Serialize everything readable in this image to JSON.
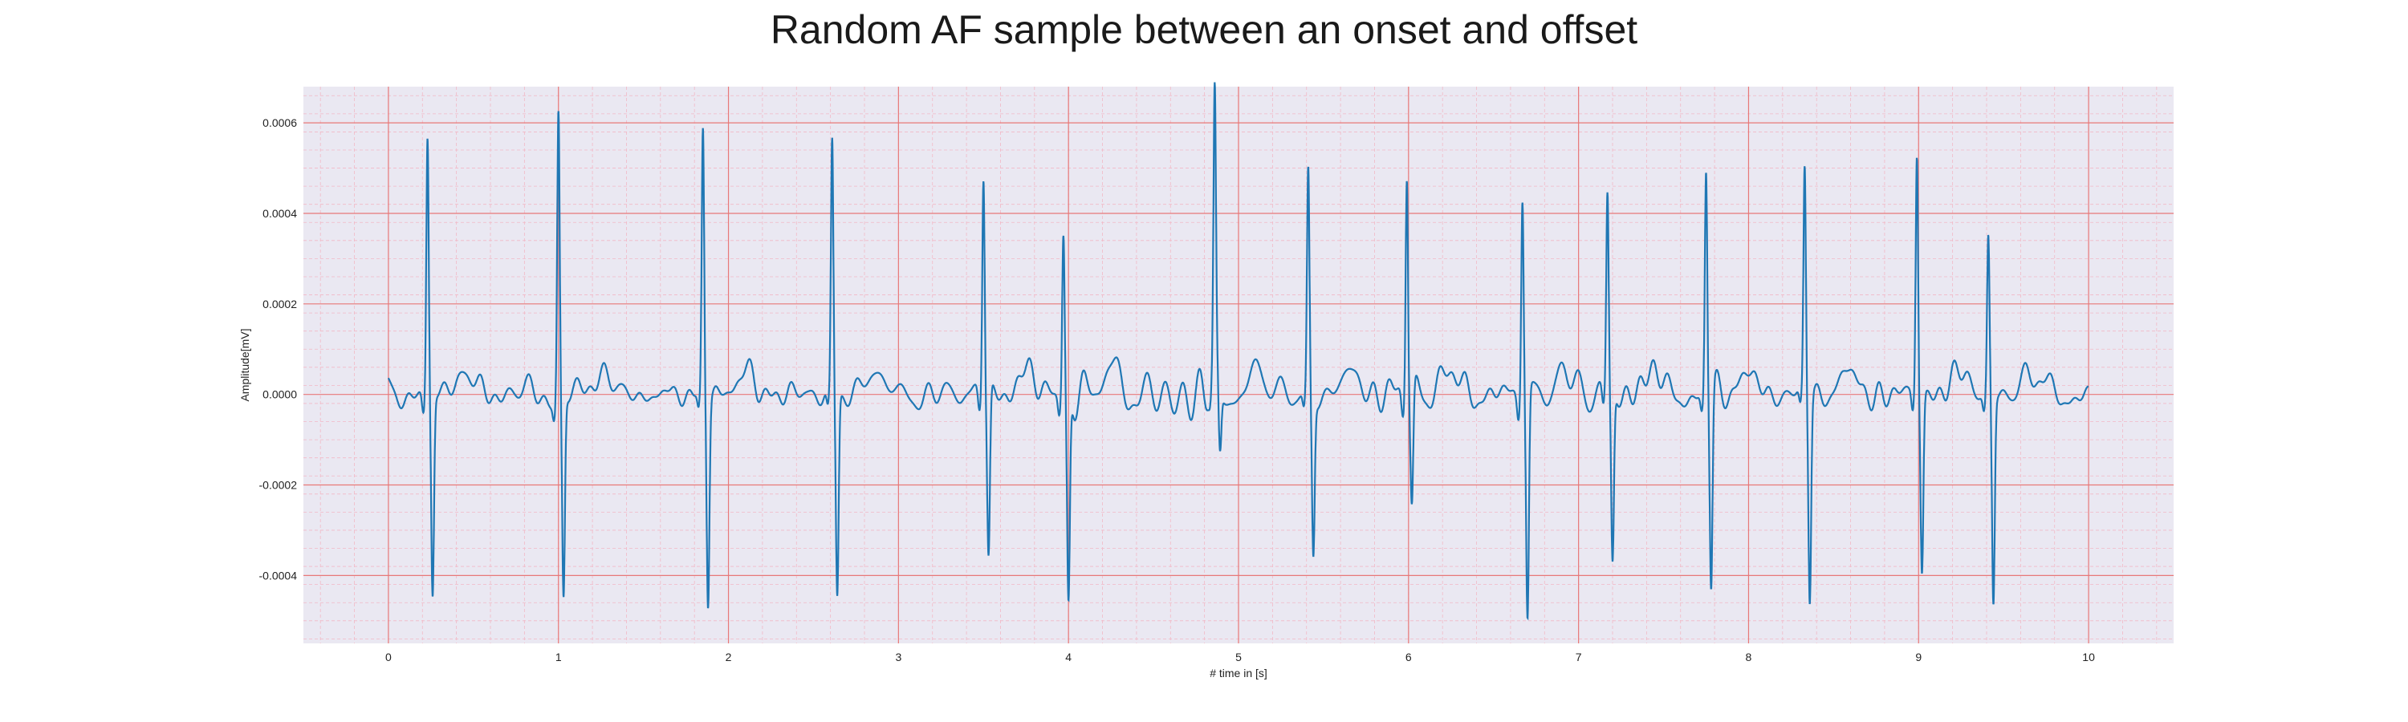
{
  "chart_data": {
    "type": "line",
    "title": "Random AF sample between an onset and offset",
    "xlabel": "# time in [s]",
    "ylabel": "Amplitude[mV]",
    "xlim": [
      -0.5,
      10.5
    ],
    "ylim": [
      -0.00055,
      0.00068
    ],
    "xticks": [
      0,
      1,
      2,
      3,
      4,
      5,
      6,
      7,
      8,
      9,
      10
    ],
    "yticks": [
      -0.0004,
      -0.0002,
      0.0,
      0.0002,
      0.0004,
      0.0006
    ],
    "ytick_labels": [
      "-0.0004",
      "-0.0002",
      "0.0000",
      "0.0002",
      "0.0004",
      "0.0006"
    ],
    "grid": true,
    "grid_color": "#e87878",
    "minor_grid_color": "#f2b8c6",
    "plot_background": "#eae8f2",
    "line_color": "#1f77b4",
    "beats": [
      {
        "t": 0.23,
        "peak": 0.00058,
        "trough": -0.00044
      },
      {
        "t": 1.0,
        "peak": 0.00062,
        "trough": -0.00045
      },
      {
        "t": 1.85,
        "peak": 0.00058,
        "trough": -0.00045
      },
      {
        "t": 2.61,
        "peak": 0.00056,
        "trough": -0.00044
      },
      {
        "t": 3.5,
        "peak": 0.0005,
        "trough": -0.00036
      },
      {
        "t": 3.97,
        "peak": 0.00036,
        "trough": -0.00046
      },
      {
        "t": 4.86,
        "peak": 0.00058,
        "trough": -0.00016
      },
      {
        "t": 5.41,
        "peak": 0.00048,
        "trough": -0.00035
      },
      {
        "t": 5.99,
        "peak": 0.00052,
        "trough": -0.00025
      },
      {
        "t": 6.67,
        "peak": 0.00046,
        "trough": -0.0005
      },
      {
        "t": 7.17,
        "peak": 0.00044,
        "trough": -0.00038
      },
      {
        "t": 7.75,
        "peak": 0.0005,
        "trough": -0.00043
      },
      {
        "t": 8.33,
        "peak": 0.00049,
        "trough": -0.00045
      },
      {
        "t": 8.99,
        "peak": 0.00054,
        "trough": -0.00038
      },
      {
        "t": 9.41,
        "peak": 0.00034,
        "trough": -0.00046
      }
    ],
    "signal_range": [
      0,
      10
    ]
  }
}
